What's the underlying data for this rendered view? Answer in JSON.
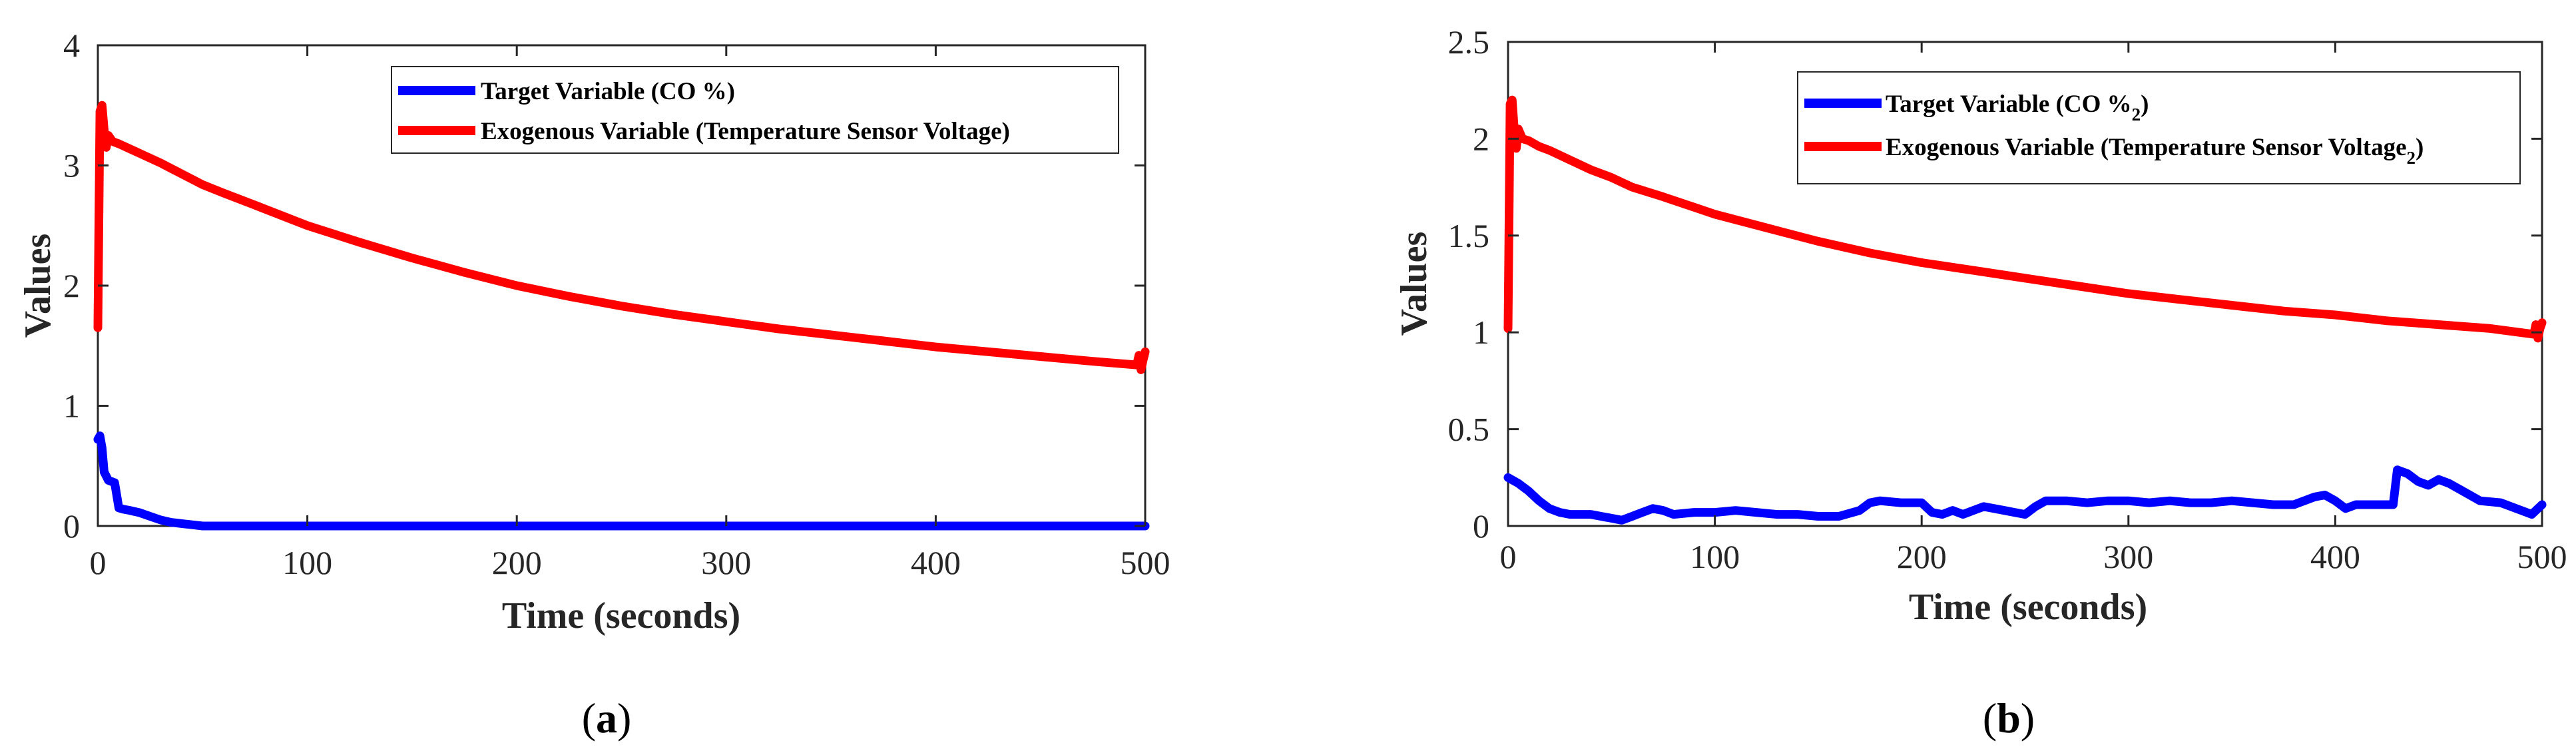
{
  "chart_data": [
    {
      "type": "line",
      "panel_label": {
        "open": "(",
        "letter": "a",
        "close": ")"
      },
      "title": "",
      "xlabel": "Time (seconds)",
      "ylabel": "Values",
      "xlim": [
        0,
        500
      ],
      "ylim": [
        0,
        4
      ],
      "xticks": [
        0,
        100,
        200,
        300,
        400,
        500
      ],
      "yticks": [
        0,
        1,
        2,
        3,
        4
      ],
      "legend_position": "top-right",
      "grid": false,
      "series": [
        {
          "name": "Target Variable (CO %)",
          "legend_label": "Target Variable (CO %)",
          "color": "#0000ff",
          "x": [
            0,
            1,
            2,
            3,
            5,
            8,
            10,
            12,
            15,
            20,
            25,
            30,
            35,
            40,
            45,
            50,
            60,
            80,
            100,
            150,
            200,
            300,
            400,
            500
          ],
          "y": [
            0.72,
            0.75,
            0.65,
            0.45,
            0.38,
            0.36,
            0.15,
            0.14,
            0.13,
            0.11,
            0.08,
            0.05,
            0.03,
            0.02,
            0.01,
            0.0,
            0.0,
            0.0,
            0.0,
            0.0,
            0.0,
            0.0,
            0.0,
            0.0
          ]
        },
        {
          "name": "Exogenous Variable (Temperature Sensor Voltage)",
          "legend_label": "Exogenous Variable (Temperature Sensor Voltage)",
          "color": "#ff0000",
          "x": [
            0,
            1,
            2,
            3,
            4,
            5,
            7,
            10,
            15,
            20,
            30,
            40,
            50,
            60,
            75,
            100,
            125,
            150,
            175,
            200,
            225,
            250,
            275,
            300,
            325,
            350,
            375,
            400,
            425,
            450,
            475,
            496,
            497,
            498,
            499,
            500
          ],
          "y": [
            1.65,
            3.45,
            3.5,
            3.3,
            3.15,
            3.25,
            3.2,
            3.18,
            3.14,
            3.1,
            3.02,
            2.93,
            2.84,
            2.77,
            2.67,
            2.5,
            2.36,
            2.23,
            2.11,
            2.0,
            1.91,
            1.83,
            1.76,
            1.7,
            1.64,
            1.59,
            1.54,
            1.49,
            1.45,
            1.41,
            1.37,
            1.34,
            1.42,
            1.3,
            1.38,
            1.45
          ]
        }
      ]
    },
    {
      "type": "line",
      "panel_label": {
        "open": "(",
        "letter": "b",
        "close": ")"
      },
      "title": "",
      "xlabel": "Time (seconds)",
      "ylabel": "Values",
      "xlim": [
        0,
        500
      ],
      "ylim": [
        0,
        2.5
      ],
      "xticks": [
        0,
        100,
        200,
        300,
        400,
        500
      ],
      "yticks": [
        0,
        0.5,
        1,
        1.5,
        2,
        2.5
      ],
      "legend_position": "top-right",
      "grid": false,
      "series": [
        {
          "name": "Target Variable (CO %2)",
          "legend_label": "Target Variable (CO %",
          "legend_sub": "2",
          "legend_suffix": ")",
          "color": "#0000ff",
          "x": [
            0,
            5,
            10,
            15,
            20,
            25,
            30,
            40,
            50,
            55,
            60,
            65,
            70,
            75,
            80,
            90,
            100,
            110,
            120,
            130,
            140,
            150,
            160,
            170,
            175,
            180,
            190,
            200,
            205,
            210,
            215,
            220,
            225,
            230,
            240,
            250,
            255,
            260,
            270,
            280,
            290,
            300,
            310,
            320,
            330,
            340,
            350,
            360,
            370,
            380,
            390,
            395,
            400,
            405,
            410,
            420,
            428,
            430,
            435,
            440,
            445,
            450,
            455,
            460,
            470,
            480,
            490,
            495,
            500
          ],
          "y": [
            0.25,
            0.22,
            0.18,
            0.13,
            0.09,
            0.07,
            0.06,
            0.06,
            0.04,
            0.03,
            0.05,
            0.07,
            0.09,
            0.08,
            0.06,
            0.07,
            0.07,
            0.08,
            0.07,
            0.06,
            0.06,
            0.05,
            0.05,
            0.08,
            0.12,
            0.13,
            0.12,
            0.12,
            0.07,
            0.06,
            0.08,
            0.06,
            0.08,
            0.1,
            0.08,
            0.06,
            0.1,
            0.13,
            0.13,
            0.12,
            0.13,
            0.13,
            0.12,
            0.13,
            0.12,
            0.12,
            0.13,
            0.12,
            0.11,
            0.11,
            0.15,
            0.16,
            0.13,
            0.09,
            0.11,
            0.11,
            0.11,
            0.29,
            0.27,
            0.23,
            0.21,
            0.24,
            0.22,
            0.19,
            0.13,
            0.12,
            0.08,
            0.06,
            0.11
          ]
        },
        {
          "name": "Exogenous Variable (Temperature Sensor Voltage2)",
          "legend_label": "Exogenous Variable (Temperature Sensor Voltage",
          "legend_sub": "2",
          "legend_suffix": ")",
          "color": "#ff0000",
          "x": [
            0,
            1,
            2,
            3,
            4,
            5,
            7,
            10,
            15,
            20,
            30,
            40,
            50,
            60,
            75,
            100,
            125,
            150,
            175,
            200,
            225,
            250,
            275,
            300,
            325,
            350,
            375,
            400,
            425,
            450,
            475,
            496,
            497,
            498,
            499,
            500
          ],
          "y": [
            1.02,
            2.18,
            2.2,
            2.05,
            1.95,
            2.05,
            2.0,
            1.99,
            1.96,
            1.94,
            1.89,
            1.84,
            1.8,
            1.75,
            1.7,
            1.61,
            1.54,
            1.47,
            1.41,
            1.36,
            1.32,
            1.28,
            1.24,
            1.2,
            1.17,
            1.14,
            1.11,
            1.09,
            1.06,
            1.04,
            1.02,
            0.99,
            1.04,
            0.97,
            1.02,
            1.05
          ]
        }
      ]
    }
  ]
}
